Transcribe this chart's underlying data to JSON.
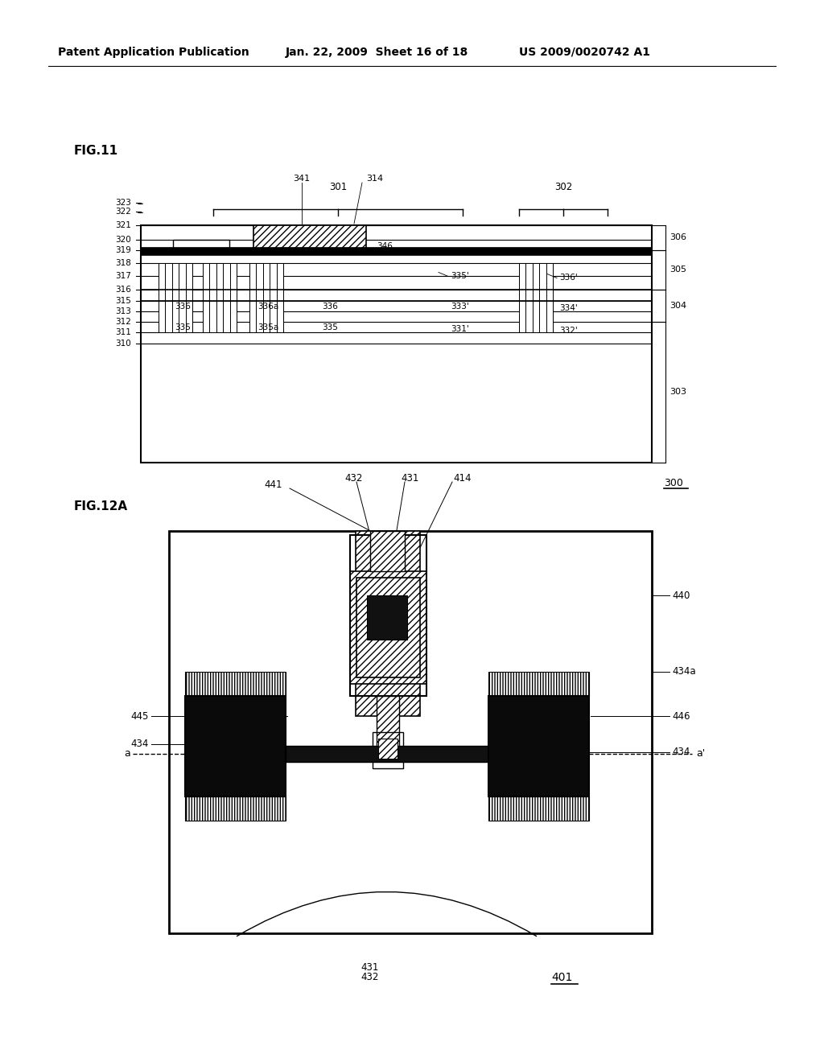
{
  "header_left": "Patent Application Publication",
  "header_mid": "Jan. 22, 2009  Sheet 16 of 18",
  "header_right": "US 2009/0020742 A1",
  "bg_color": "#ffffff"
}
